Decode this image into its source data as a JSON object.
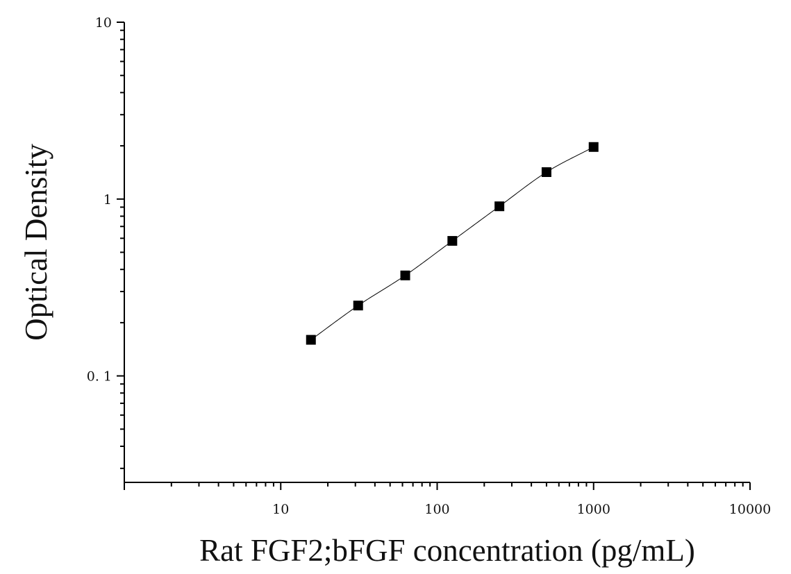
{
  "chart_data": {
    "type": "scatter",
    "title": "",
    "xlabel": "Rat FGF2;bFGF concentration (pg/mL)",
    "ylabel": "Optical Density",
    "xscale": "log",
    "yscale": "log",
    "xlim": [
      1,
      10000
    ],
    "ylim": [
      0.025,
      10
    ],
    "x_tick_labels": [
      "10",
      "100",
      "1000",
      "10000"
    ],
    "y_tick_labels": [
      "0. 1",
      "1",
      "10"
    ],
    "grid": false,
    "legend": "none",
    "marker": "square",
    "color": "#000000",
    "fit_curve": true,
    "points": [
      {
        "x": 15.6,
        "y": 0.16
      },
      {
        "x": 31.25,
        "y": 0.25
      },
      {
        "x": 62.5,
        "y": 0.37
      },
      {
        "x": 125,
        "y": 0.58
      },
      {
        "x": 250,
        "y": 0.91
      },
      {
        "x": 500,
        "y": 1.42
      },
      {
        "x": 1000,
        "y": 1.97
      }
    ]
  }
}
